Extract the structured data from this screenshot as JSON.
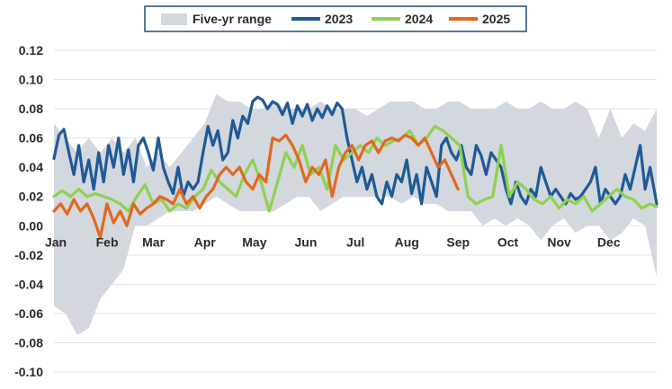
{
  "chart_data": {
    "type": "line",
    "title": "",
    "xlabel": "",
    "ylabel": "",
    "ylim": [
      -0.1,
      0.12
    ],
    "grid": true,
    "legend_position": "top-center",
    "y_ticks": [
      "0.12",
      "0.10",
      "0.08",
      "0.06",
      "0.04",
      "0.02",
      "0.00",
      "-0.02",
      "-0.04",
      "-0.06",
      "-0.08",
      "-0.10"
    ],
    "y_tick_values": [
      0.12,
      0.1,
      0.08,
      0.06,
      0.04,
      0.02,
      0.0,
      -0.02,
      -0.04,
      -0.06,
      -0.08,
      -0.1
    ],
    "months": [
      "Jan",
      "Feb",
      "Mar",
      "Apr",
      "May",
      "Jun",
      "Jul",
      "Aug",
      "Sep",
      "Oct",
      "Nov",
      "Dec"
    ],
    "x_unit": "day_of_year",
    "x_domain": [
      1,
      365
    ],
    "legend": [
      "Five-yr range",
      "2023",
      "2024",
      "2025"
    ],
    "colors": {
      "range": "#d3d7de",
      "2023": "#1f5a96",
      "2024": "#8fd14f",
      "2025": "#e0691f",
      "grid": "#dfe3e8",
      "legend_border": "#1f4e79"
    },
    "range": {
      "name": "Five-yr range",
      "x": [
        1,
        8,
        15,
        22,
        29,
        36,
        43,
        50,
        57,
        64,
        71,
        78,
        85,
        92,
        99,
        106,
        113,
        120,
        127,
        134,
        141,
        148,
        155,
        162,
        169,
        176,
        183,
        190,
        197,
        204,
        211,
        218,
        225,
        232,
        239,
        246,
        253,
        260,
        267,
        274,
        281,
        288,
        295,
        302,
        309,
        316,
        323,
        330,
        337,
        344,
        351,
        358,
        365
      ],
      "high": [
        0.07,
        0.06,
        0.05,
        0.06,
        0.05,
        0.06,
        0.05,
        0.06,
        0.04,
        0.05,
        0.04,
        0.05,
        0.06,
        0.07,
        0.09,
        0.085,
        0.085,
        0.08,
        0.08,
        0.085,
        0.08,
        0.08,
        0.08,
        0.085,
        0.08,
        0.08,
        0.08,
        0.075,
        0.08,
        0.085,
        0.085,
        0.085,
        0.08,
        0.08,
        0.085,
        0.085,
        0.08,
        0.08,
        0.08,
        0.085,
        0.08,
        0.08,
        0.085,
        0.08,
        0.08,
        0.085,
        0.08,
        0.06,
        0.08,
        0.06,
        0.07,
        0.065,
        0.08
      ],
      "low": [
        -0.055,
        -0.06,
        -0.075,
        -0.07,
        -0.05,
        -0.04,
        -0.03,
        0.0,
        0.0,
        0.005,
        0.01,
        0.01,
        0.01,
        0.015,
        0.02,
        0.015,
        0.01,
        0.01,
        0.01,
        0.01,
        0.015,
        0.02,
        0.02,
        0.01,
        0.015,
        0.02,
        0.02,
        0.02,
        0.02,
        0.02,
        0.015,
        0.02,
        0.015,
        0.015,
        0.01,
        0.01,
        0.01,
        0.0,
        0.005,
        0.0,
        0.005,
        0.0,
        -0.01,
        0.0,
        0.005,
        -0.005,
        0.0,
        0.0,
        -0.01,
        -0.005,
        0.005,
        0.0,
        -0.035
      ]
    },
    "series": [
      {
        "name": "2023",
        "x": [
          1,
          4,
          7,
          10,
          13,
          16,
          19,
          22,
          25,
          28,
          31,
          34,
          37,
          40,
          43,
          46,
          49,
          52,
          55,
          58,
          61,
          64,
          67,
          70,
          73,
          76,
          79,
          82,
          85,
          88,
          91,
          94,
          97,
          100,
          103,
          106,
          109,
          112,
          115,
          118,
          121,
          124,
          127,
          130,
          133,
          136,
          139,
          142,
          145,
          148,
          151,
          154,
          157,
          160,
          163,
          166,
          169,
          172,
          175,
          178,
          181,
          184,
          187,
          190,
          193,
          196,
          199,
          202,
          205,
          208,
          211,
          214,
          217,
          220,
          223,
          226,
          229,
          232,
          235,
          238,
          241,
          244,
          247,
          250,
          253,
          256,
          259,
          262,
          265,
          268,
          271,
          274,
          277,
          280,
          283,
          286,
          289,
          292,
          295,
          298,
          301,
          304,
          307,
          310,
          313,
          316,
          319,
          322,
          325,
          328,
          331,
          334,
          337,
          340,
          343,
          346,
          349,
          352,
          355,
          358,
          361,
          365
        ],
        "y": [
          0.046,
          0.062,
          0.066,
          0.05,
          0.035,
          0.055,
          0.03,
          0.045,
          0.025,
          0.05,
          0.03,
          0.055,
          0.04,
          0.06,
          0.035,
          0.052,
          0.03,
          0.055,
          0.06,
          0.05,
          0.038,
          0.06,
          0.04,
          0.03,
          0.022,
          0.04,
          0.02,
          0.03,
          0.025,
          0.03,
          0.05,
          0.068,
          0.055,
          0.065,
          0.045,
          0.05,
          0.072,
          0.06,
          0.075,
          0.07,
          0.085,
          0.088,
          0.086,
          0.08,
          0.085,
          0.083,
          0.076,
          0.084,
          0.07,
          0.082,
          0.075,
          0.083,
          0.072,
          0.08,
          0.074,
          0.082,
          0.076,
          0.084,
          0.08,
          0.06,
          0.045,
          0.03,
          0.04,
          0.025,
          0.035,
          0.02,
          0.015,
          0.03,
          0.02,
          0.035,
          0.03,
          0.045,
          0.022,
          0.035,
          0.015,
          0.04,
          0.03,
          0.02,
          0.055,
          0.06,
          0.05,
          0.045,
          0.055,
          0.04,
          0.035,
          0.055,
          0.048,
          0.035,
          0.05,
          0.045,
          0.04,
          0.025,
          0.015,
          0.03,
          0.02,
          0.015,
          0.025,
          0.02,
          0.04,
          0.03,
          0.02,
          0.025,
          0.02,
          0.015,
          0.022,
          0.018,
          0.02,
          0.025,
          0.03,
          0.04,
          0.015,
          0.025,
          0.02,
          0.015,
          0.02,
          0.035,
          0.025,
          0.04,
          0.055,
          0.025,
          0.04,
          0.015
        ]
      },
      {
        "name": "2024",
        "x": [
          1,
          6,
          11,
          16,
          21,
          26,
          31,
          36,
          41,
          46,
          51,
          56,
          61,
          66,
          71,
          76,
          81,
          86,
          91,
          96,
          101,
          106,
          111,
          116,
          121,
          126,
          131,
          136,
          141,
          146,
          151,
          156,
          161,
          166,
          171,
          176,
          181,
          186,
          191,
          196,
          201,
          206,
          211,
          216,
          221,
          226,
          231,
          236,
          241,
          246,
          251,
          256,
          261,
          266,
          271,
          276,
          281,
          286,
          291,
          296,
          301,
          306,
          311,
          316,
          321,
          326,
          331,
          336,
          341,
          346,
          351,
          356,
          361,
          365
        ],
        "y": [
          0.02,
          0.024,
          0.02,
          0.025,
          0.02,
          0.022,
          0.02,
          0.018,
          0.015,
          0.01,
          0.02,
          0.028,
          0.015,
          0.018,
          0.01,
          0.015,
          0.012,
          0.02,
          0.025,
          0.038,
          0.03,
          0.025,
          0.02,
          0.035,
          0.045,
          0.03,
          0.01,
          0.03,
          0.05,
          0.04,
          0.055,
          0.035,
          0.04,
          0.025,
          0.055,
          0.045,
          0.05,
          0.055,
          0.05,
          0.06,
          0.055,
          0.058,
          0.06,
          0.065,
          0.055,
          0.06,
          0.068,
          0.065,
          0.06,
          0.055,
          0.02,
          0.015,
          0.018,
          0.02,
          0.055,
          0.02,
          0.03,
          0.025,
          0.018,
          0.015,
          0.02,
          0.012,
          0.018,
          0.015,
          0.02,
          0.01,
          0.015,
          0.02,
          0.025,
          0.02,
          0.018,
          0.012,
          0.015,
          0.013
        ]
      },
      {
        "name": "2025",
        "x": [
          1,
          5,
          9,
          13,
          17,
          21,
          25,
          29,
          33,
          37,
          41,
          45,
          49,
          53,
          57,
          61,
          65,
          69,
          73,
          77,
          81,
          85,
          89,
          93,
          97,
          101,
          105,
          109,
          113,
          117,
          121,
          125,
          129,
          133,
          137,
          141,
          145,
          149,
          153,
          157,
          161,
          165,
          169,
          173,
          177,
          181,
          185,
          189,
          193,
          197,
          201,
          205,
          209,
          213,
          217,
          221,
          225,
          229,
          233,
          237,
          241,
          245
        ],
        "y": [
          0.01,
          0.015,
          0.008,
          0.018,
          0.01,
          0.015,
          0.005,
          -0.008,
          0.015,
          0.002,
          0.01,
          0.0,
          0.015,
          0.008,
          0.012,
          0.015,
          0.02,
          0.018,
          0.015,
          0.025,
          0.015,
          0.02,
          0.012,
          0.02,
          0.025,
          0.035,
          0.04,
          0.035,
          0.04,
          0.03,
          0.025,
          0.035,
          0.03,
          0.06,
          0.058,
          0.062,
          0.055,
          0.045,
          0.03,
          0.04,
          0.035,
          0.045,
          0.02,
          0.04,
          0.05,
          0.055,
          0.045,
          0.055,
          0.058,
          0.05,
          0.058,
          0.06,
          0.058,
          0.062,
          0.06,
          0.055,
          0.06,
          0.05,
          0.04,
          0.045,
          0.035,
          0.025
        ]
      }
    ]
  }
}
